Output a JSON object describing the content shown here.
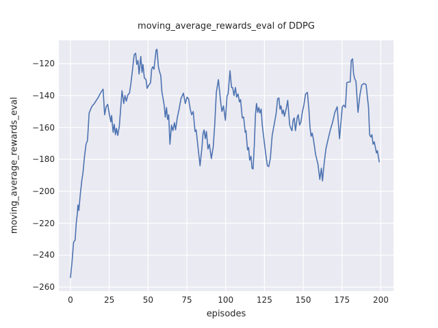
{
  "figure": {
    "background": "#ffffff"
  },
  "chart_data": {
    "type": "line",
    "title": "moving_average_rewards_eval of DDPG",
    "xlabel": "episodes",
    "ylabel": "moving_average_rewards_eval",
    "xlim": [
      -7.5,
      208.2
    ],
    "ylim": [
      -262.5,
      -105.4
    ],
    "xticks": [
      0,
      25,
      50,
      75,
      100,
      125,
      150,
      175,
      200
    ],
    "xtick_labels": [
      "0",
      "25",
      "50",
      "75",
      "100",
      "125",
      "150",
      "175",
      "200"
    ],
    "yticks": [
      -260,
      -240,
      -220,
      -200,
      -180,
      -160,
      -140,
      -120
    ],
    "ytick_labels": [
      "−260",
      "−240",
      "−220",
      "−200",
      "−180",
      "−160",
      "−140",
      "−120"
    ],
    "grid": true,
    "legend": null,
    "styles": {
      "line_color": "#4C72B0",
      "plot_background": "#EAEAF2",
      "grid_color": "#FFFFFF",
      "text_color": "#262626"
    },
    "series": [
      {
        "name": "moving_average_rewards_eval",
        "points": [
          [
            0,
            -254
          ],
          [
            1,
            -244
          ],
          [
            2,
            -232
          ],
          [
            3,
            -230.5
          ],
          [
            3.7,
            -220
          ],
          [
            4.4,
            -214
          ],
          [
            4.8,
            -208.5
          ],
          [
            5.4,
            -212
          ],
          [
            6.3,
            -202
          ],
          [
            7.3,
            -193
          ],
          [
            8,
            -189
          ],
          [
            9,
            -178.5
          ],
          [
            10,
            -170.5
          ],
          [
            11,
            -168
          ],
          [
            12,
            -151
          ],
          [
            13,
            -148.5
          ],
          [
            14,
            -146.5
          ],
          [
            15,
            -145.5
          ],
          [
            16,
            -144
          ],
          [
            17,
            -142.5
          ],
          [
            18,
            -141
          ],
          [
            19,
            -139
          ],
          [
            20,
            -137.5
          ],
          [
            21,
            -136
          ],
          [
            22,
            -152
          ],
          [
            23,
            -147
          ],
          [
            24,
            -145.5
          ],
          [
            25,
            -151.5
          ],
          [
            26,
            -156.5
          ],
          [
            26.5,
            -152.5
          ],
          [
            27.5,
            -163
          ],
          [
            28.2,
            -158
          ],
          [
            29,
            -164.5
          ],
          [
            29.6,
            -160.5
          ],
          [
            30.5,
            -165
          ],
          [
            31.5,
            -159
          ],
          [
            32.5,
            -146
          ],
          [
            33.2,
            -137
          ],
          [
            34.3,
            -145
          ],
          [
            35.1,
            -140
          ],
          [
            36,
            -143.5
          ],
          [
            37,
            -139.5
          ],
          [
            38,
            -138.5
          ],
          [
            39,
            -132
          ],
          [
            40,
            -123.5
          ],
          [
            41,
            -114.5
          ],
          [
            42,
            -113.5
          ],
          [
            42.7,
            -120.5
          ],
          [
            43.5,
            -118
          ],
          [
            44.2,
            -126.5
          ],
          [
            45.3,
            -115.5
          ],
          [
            46.1,
            -125.5
          ],
          [
            46.7,
            -120.5
          ],
          [
            47.6,
            -129
          ],
          [
            48.7,
            -130
          ],
          [
            49.4,
            -135.5
          ],
          [
            50.1,
            -134
          ],
          [
            51.6,
            -132
          ],
          [
            52.3,
            -123.5
          ],
          [
            53,
            -122
          ],
          [
            53.8,
            -123.5
          ],
          [
            55.2,
            -111.5
          ],
          [
            55.7,
            -111
          ],
          [
            56.7,
            -122
          ],
          [
            57.4,
            -125
          ],
          [
            58.2,
            -127.5
          ],
          [
            58.9,
            -137.5
          ],
          [
            60.4,
            -146
          ],
          [
            61.1,
            -153.5
          ],
          [
            61.9,
            -147.5
          ],
          [
            62.6,
            -155
          ],
          [
            63.3,
            -152
          ],
          [
            64.1,
            -170.5
          ],
          [
            65.1,
            -158.5
          ],
          [
            66,
            -162
          ],
          [
            67,
            -157
          ],
          [
            67.7,
            -161.5
          ],
          [
            68.9,
            -153.5
          ],
          [
            70,
            -148.5
          ],
          [
            71.2,
            -142
          ],
          [
            72.8,
            -138.5
          ],
          [
            74,
            -145
          ],
          [
            75.1,
            -141
          ],
          [
            76.1,
            -142
          ],
          [
            77.3,
            -149
          ],
          [
            78.1,
            -152
          ],
          [
            79.1,
            -150
          ],
          [
            80.3,
            -162.5
          ],
          [
            81,
            -161.5
          ],
          [
            82.5,
            -175
          ],
          [
            83.5,
            -184
          ],
          [
            84.7,
            -173
          ],
          [
            85.4,
            -164
          ],
          [
            86.1,
            -161.5
          ],
          [
            86.9,
            -167
          ],
          [
            87.6,
            -162.5
          ],
          [
            88.6,
            -173.5
          ],
          [
            89.5,
            -170.5
          ],
          [
            90.8,
            -179.5
          ],
          [
            92,
            -172
          ],
          [
            93,
            -158
          ],
          [
            94,
            -138
          ],
          [
            95.3,
            -130
          ],
          [
            96.9,
            -145
          ],
          [
            97.6,
            -150
          ],
          [
            98.6,
            -146.5
          ],
          [
            99.8,
            -155.5
          ],
          [
            100.9,
            -140.5
          ],
          [
            101.6,
            -139
          ],
          [
            102.8,
            -124.5
          ],
          [
            103.8,
            -135
          ],
          [
            104.5,
            -135
          ],
          [
            105.4,
            -140
          ],
          [
            106.3,
            -135
          ],
          [
            107.1,
            -141
          ],
          [
            108,
            -139
          ],
          [
            108.9,
            -144
          ],
          [
            109.6,
            -142.5
          ],
          [
            110.7,
            -154
          ],
          [
            111.6,
            -153.5
          ],
          [
            112.6,
            -163
          ],
          [
            113.1,
            -162
          ],
          [
            114.1,
            -174
          ],
          [
            114.8,
            -172.5
          ],
          [
            115.5,
            -180.5
          ],
          [
            116.3,
            -178
          ],
          [
            117,
            -185.5
          ],
          [
            117.7,
            -186
          ],
          [
            118.5,
            -171
          ],
          [
            119.2,
            -152.5
          ],
          [
            119.9,
            -145
          ],
          [
            120.7,
            -150.5
          ],
          [
            121.4,
            -147.5
          ],
          [
            122.1,
            -151
          ],
          [
            122.9,
            -148.5
          ],
          [
            123.6,
            -158.5
          ],
          [
            125,
            -170
          ],
          [
            125.9,
            -177
          ],
          [
            126.9,
            -184
          ],
          [
            127.8,
            -184.5
          ],
          [
            128.8,
            -179.5
          ],
          [
            130,
            -165
          ],
          [
            131.5,
            -157
          ],
          [
            132.5,
            -151.5
          ],
          [
            133.5,
            -142
          ],
          [
            134.3,
            -141.5
          ],
          [
            135,
            -148.5
          ],
          [
            135.7,
            -146.5
          ],
          [
            136.5,
            -151.5
          ],
          [
            137.2,
            -149
          ],
          [
            137.9,
            -153
          ],
          [
            139.1,
            -148
          ],
          [
            140,
            -143
          ],
          [
            141.3,
            -158.5
          ],
          [
            142,
            -160.5
          ],
          [
            142.8,
            -162
          ],
          [
            143.5,
            -155.5
          ],
          [
            144.2,
            -154
          ],
          [
            145,
            -162
          ],
          [
            146.2,
            -153.5
          ],
          [
            146.8,
            -152
          ],
          [
            147.7,
            -158.5
          ],
          [
            148.5,
            -156.5
          ],
          [
            149.5,
            -150
          ],
          [
            150.4,
            -146
          ],
          [
            151.5,
            -139
          ],
          [
            152.7,
            -138
          ],
          [
            153.7,
            -149
          ],
          [
            154.4,
            -160
          ],
          [
            155.1,
            -165.5
          ],
          [
            155.8,
            -163.5
          ],
          [
            156.6,
            -167.5
          ],
          [
            158,
            -177
          ],
          [
            159.5,
            -183
          ],
          [
            160.7,
            -192.5
          ],
          [
            161.7,
            -185.5
          ],
          [
            162.4,
            -193.5
          ],
          [
            163.6,
            -181.5
          ],
          [
            164.6,
            -173.5
          ],
          [
            166.1,
            -167
          ],
          [
            167.5,
            -161.5
          ],
          [
            169,
            -156.5
          ],
          [
            170.4,
            -150.5
          ],
          [
            171.9,
            -147
          ],
          [
            173.4,
            -167
          ],
          [
            175.2,
            -147
          ],
          [
            176.2,
            -146
          ],
          [
            177.2,
            -147.5
          ],
          [
            178.1,
            -132
          ],
          [
            179,
            -131.5
          ],
          [
            180.3,
            -131.5
          ],
          [
            181,
            -118
          ],
          [
            181.8,
            -117
          ],
          [
            182.5,
            -126.5
          ],
          [
            183.2,
            -129.5
          ],
          [
            184,
            -131
          ],
          [
            185.3,
            -150.5
          ],
          [
            186.5,
            -140
          ],
          [
            187.7,
            -133.5
          ],
          [
            189,
            -132.5
          ],
          [
            190.5,
            -133
          ],
          [
            192.1,
            -147.5
          ],
          [
            192.8,
            -164.5
          ],
          [
            193.6,
            -166
          ],
          [
            194.3,
            -164.5
          ],
          [
            195,
            -170.5
          ],
          [
            195.8,
            -169
          ],
          [
            197.2,
            -176
          ],
          [
            197.8,
            -174.5
          ],
          [
            199,
            -181.5
          ]
        ]
      }
    ]
  }
}
